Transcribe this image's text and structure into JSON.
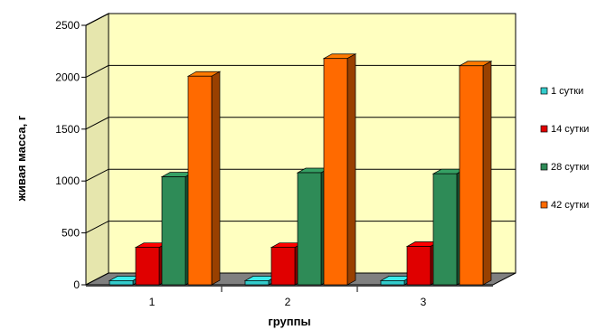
{
  "chart_data": {
    "type": "bar",
    "title": "",
    "xlabel": "группы",
    "ylabel": "живая масса, г",
    "categories": [
      "1",
      "2",
      "3"
    ],
    "ylim": [
      0,
      2500
    ],
    "yticks": [
      "0",
      "500",
      "1000",
      "1500",
      "2000",
      "2500"
    ],
    "grid": true,
    "legend_position": "right",
    "series": [
      {
        "name": "1 сутки",
        "color": "#33CCCC",
        "values": [
          40,
          40,
          40
        ]
      },
      {
        "name": "14 сутки",
        "color": "#E00000",
        "values": [
          360,
          360,
          370
        ]
      },
      {
        "name": "28 сутки",
        "color": "#2E8B57",
        "values": [
          1040,
          1080,
          1070
        ]
      },
      {
        "name": "42 сутки",
        "color": "#FF6A00",
        "values": [
          2010,
          2180,
          2110
        ]
      }
    ],
    "wall_color": "#FFFFC0",
    "floor_color": "#808080"
  }
}
